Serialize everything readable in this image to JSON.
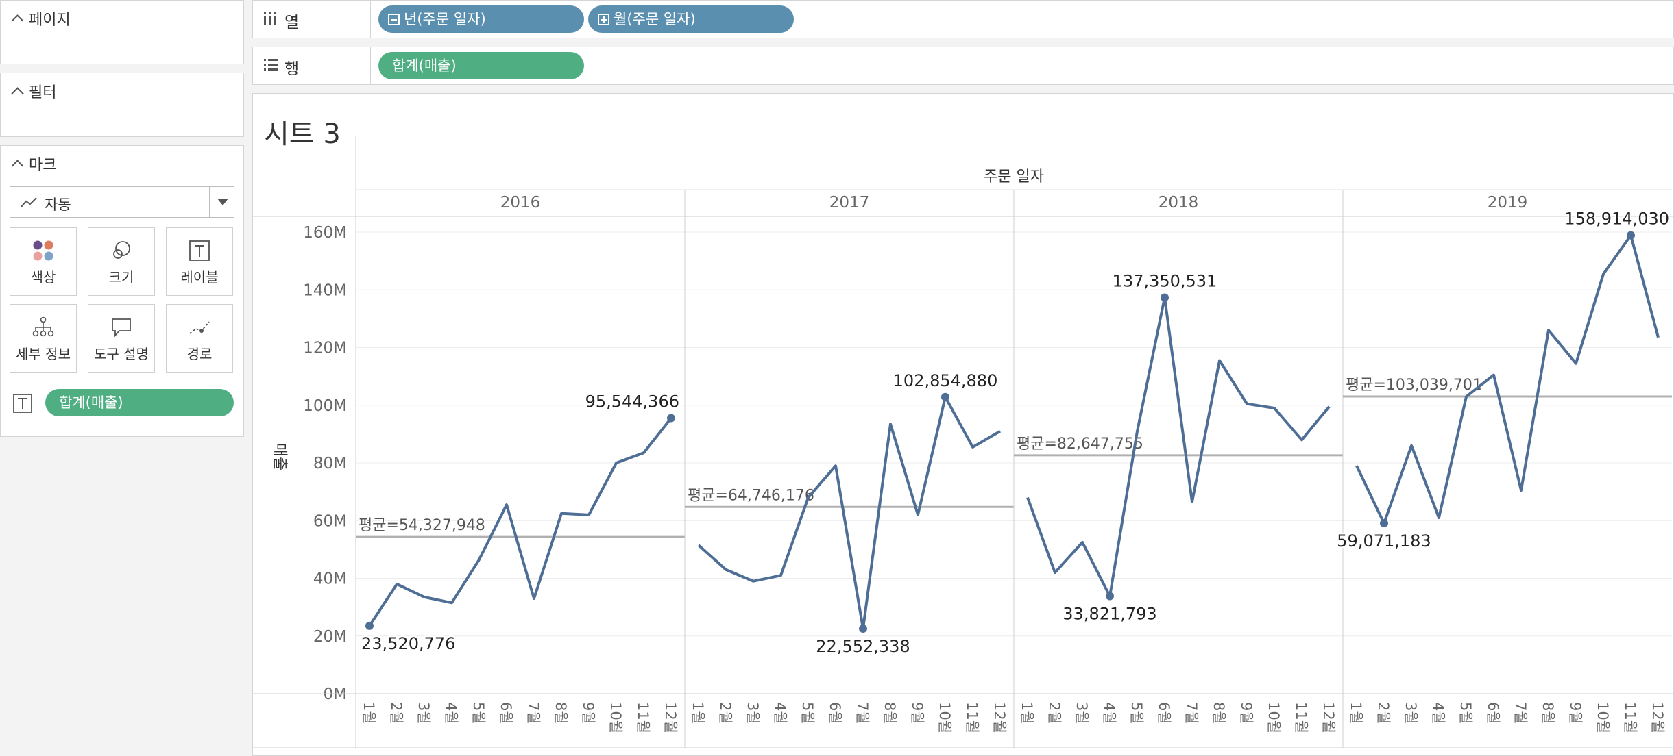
{
  "panels": {
    "pages": {
      "title": "페이지"
    },
    "filters": {
      "title": "필터"
    },
    "marks": {
      "title": "마크",
      "mark_type": "자동",
      "buttons": [
        {
          "label": "색상",
          "icon": "color-icon"
        },
        {
          "label": "크기",
          "icon": "size-icon"
        },
        {
          "label": "레이블",
          "icon": "label-icon"
        },
        {
          "label": "세부 정보",
          "icon": "detail-icon"
        },
        {
          "label": "도구 설명",
          "icon": "tooltip-icon"
        },
        {
          "label": "경로",
          "icon": "path-icon"
        }
      ],
      "label_pill": "합계(매출)"
    }
  },
  "shelves": {
    "columns": {
      "name": "열",
      "pills": [
        "년(주문 일자)",
        "월(주문 일자)"
      ]
    },
    "rows": {
      "name": "행",
      "pills": [
        "합계(매출)"
      ]
    }
  },
  "colors": {
    "line": "#4e6e96",
    "ref_line": "#b0b0b0",
    "pill_green": "#4fae82",
    "pill_blue": "#5b8faf"
  },
  "sheet": {
    "title": "시트 3"
  },
  "chart_data": {
    "type": "line",
    "header_title": "주문 일자",
    "ylabel": "매출",
    "ylim": [
      0,
      165000000
    ],
    "yticks": [
      {
        "v": 0,
        "label": "0M"
      },
      {
        "v": 20000000,
        "label": "20M"
      },
      {
        "v": 40000000,
        "label": "40M"
      },
      {
        "v": 60000000,
        "label": "60M"
      },
      {
        "v": 80000000,
        "label": "80M"
      },
      {
        "v": 100000000,
        "label": "100M"
      },
      {
        "v": 120000000,
        "label": "120M"
      },
      {
        "v": 140000000,
        "label": "140M"
      },
      {
        "v": 160000000,
        "label": "160M"
      }
    ],
    "month_labels": [
      "1월",
      "2월",
      "3월",
      "4월",
      "5월",
      "6월",
      "7월",
      "8월",
      "9월",
      "10월",
      "11월",
      "12월"
    ],
    "grid": true,
    "panes": [
      {
        "year": "2016",
        "values": [
          23520776,
          38000000,
          33500000,
          31500000,
          46500000,
          65500000,
          33000000,
          62500000,
          62000000,
          80000000,
          83500000,
          95544366
        ],
        "average": 54327948,
        "average_label": "평균=54,327,948",
        "labels": [
          {
            "month": 1,
            "text": "23,520,776",
            "pos": "below"
          },
          {
            "month": 12,
            "text": "95,544,366",
            "pos": "above"
          }
        ]
      },
      {
        "year": "2017",
        "values": [
          51500000,
          43000000,
          39000000,
          41000000,
          68000000,
          79000000,
          22552338,
          93500000,
          62000000,
          102854880,
          85500000,
          91000000
        ],
        "average": 64746176,
        "average_label": "평균=64,746,176",
        "labels": [
          {
            "month": 7,
            "text": "22,552,338",
            "pos": "below"
          },
          {
            "month": 10,
            "text": "102,854,880",
            "pos": "above"
          }
        ]
      },
      {
        "year": "2018",
        "values": [
          68000000,
          42000000,
          52500000,
          33821793,
          91000000,
          137350531,
          66500000,
          115500000,
          100500000,
          99000000,
          88000000,
          99500000
        ],
        "average": 82647755,
        "average_label": "평균=82,647,755",
        "labels": [
          {
            "month": 4,
            "text": "33,821,793",
            "pos": "below"
          },
          {
            "month": 6,
            "text": "137,350,531",
            "pos": "above"
          }
        ]
      },
      {
        "year": "2019",
        "values": [
          79000000,
          59071183,
          86000000,
          61000000,
          103000000,
          110500000,
          70500000,
          126000000,
          114500000,
          145500000,
          158914030,
          123500000
        ],
        "average": 103039701,
        "average_label": "평균=103,039,701",
        "labels": [
          {
            "month": 2,
            "text": "59,071,183",
            "pos": "below"
          },
          {
            "month": 11,
            "text": "158,914,030",
            "pos": "above"
          }
        ]
      }
    ]
  }
}
